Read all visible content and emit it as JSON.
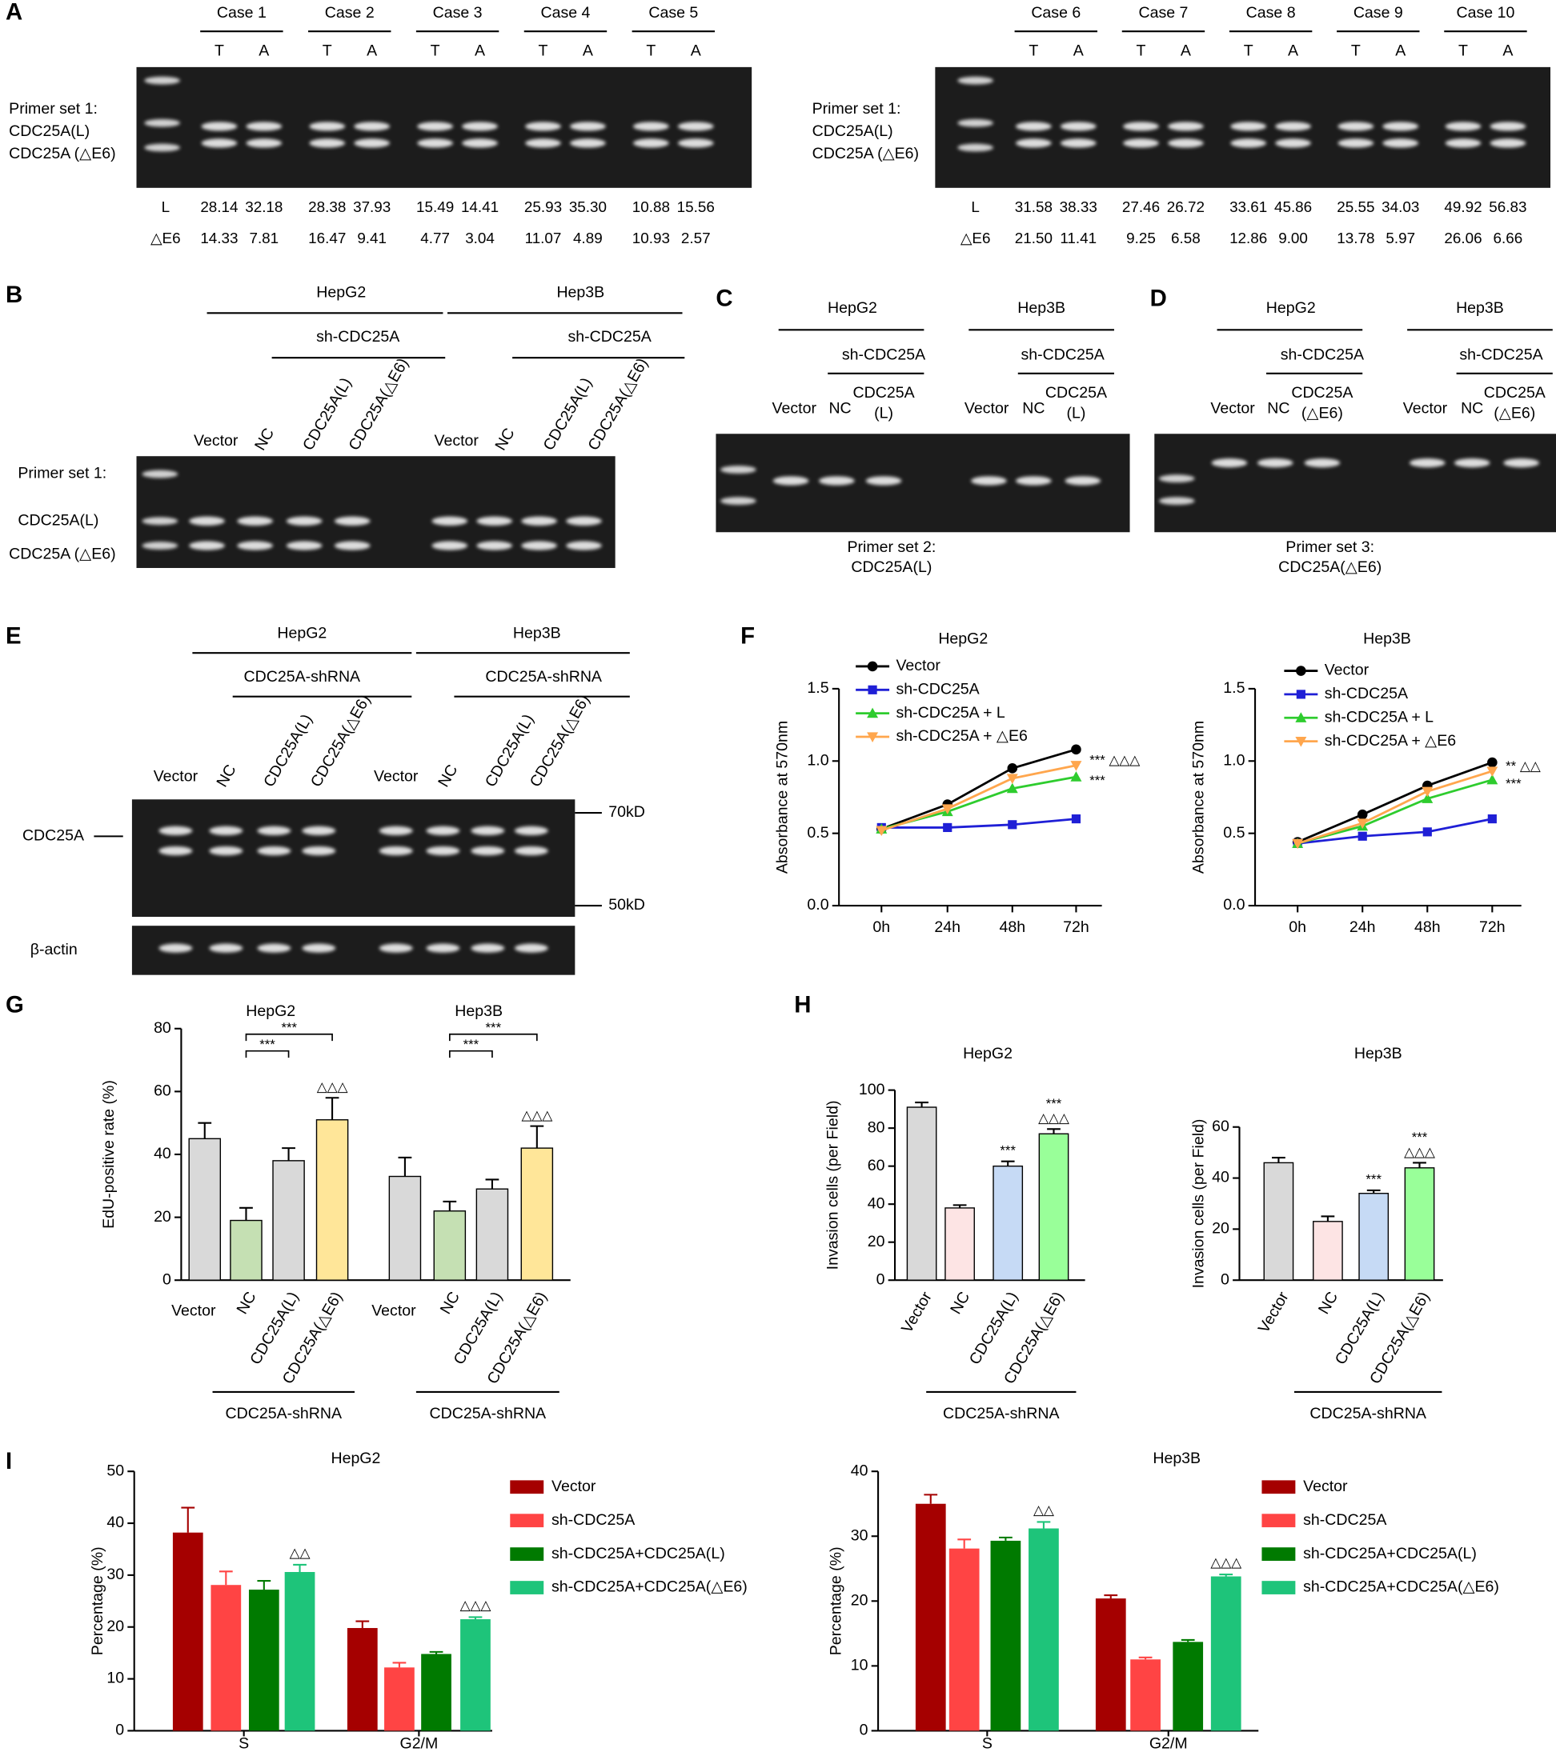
{
  "panel_labels": [
    "A",
    "B",
    "C",
    "D",
    "E",
    "F",
    "G",
    "H",
    "I"
  ],
  "panel_a": [
    {
      "cases": [
        "Case 1",
        "Case 2",
        "Case 3",
        "Case 4",
        "Case 5"
      ],
      "lanes": [
        "T",
        "A"
      ],
      "primer": "Primer set 1:",
      "bands": [
        "CDC25A(L)",
        "CDC25A (△E6)"
      ],
      "rows": [
        {
          "label": "L",
          "values": [
            "28.14",
            "32.18",
            "28.38",
            "37.93",
            "15.49",
            "14.41",
            "25.93",
            "35.30",
            "10.88",
            "15.56"
          ]
        },
        {
          "label": "△E6",
          "values": [
            "14.33",
            "7.81",
            "16.47",
            "9.41",
            "4.77",
            "3.04",
            "11.07",
            "4.89",
            "10.93",
            "2.57"
          ]
        }
      ]
    },
    {
      "cases": [
        "Case 6",
        "Case 7",
        "Case 8",
        "Case 9",
        "Case 10"
      ],
      "lanes": [
        "T",
        "A"
      ],
      "primer": "Primer set 1:",
      "bands": [
        "CDC25A(L)",
        "CDC25A (△E6)"
      ],
      "rows": [
        {
          "label": "L",
          "values": [
            "31.58",
            "38.33",
            "27.46",
            "26.72",
            "33.61",
            "45.86",
            "25.55",
            "34.03",
            "49.92",
            "56.83"
          ]
        },
        {
          "label": "△E6",
          "values": [
            "21.50",
            "11.41",
            "9.25",
            "6.58",
            "12.86",
            "9.00",
            "13.78",
            "5.97",
            "26.06",
            "6.66"
          ]
        }
      ]
    }
  ],
  "panel_b": {
    "cells": [
      "HepG2",
      "Hep3B"
    ],
    "treatment": "sh-CDC25A",
    "lanes": [
      "Vector",
      "NC",
      "CDC25A(L)",
      "CDC25A(△E6)"
    ],
    "primer": "Primer set 1:",
    "bands": [
      "CDC25A(L)",
      "CDC25A (△E6)"
    ]
  },
  "panel_c": {
    "cells": [
      "HepG2",
      "Hep3B"
    ],
    "treatment": "sh-CDC25A",
    "lanes": [
      "Vector",
      "NC"
    ],
    "construct": [
      "CDC25A",
      "(L)"
    ],
    "caption": [
      "Primer set 2:",
      "CDC25A(L)"
    ]
  },
  "panel_d": {
    "cells": [
      "HepG2",
      "Hep3B"
    ],
    "treatment": "sh-CDC25A",
    "lanes": [
      "Vector",
      "NC"
    ],
    "construct": [
      "CDC25A",
      "(△E6)"
    ],
    "caption": [
      "Primer set 3:",
      "CDC25A(△E6)"
    ]
  },
  "panel_e": {
    "cells": [
      "HepG2",
      "Hep3B"
    ],
    "treatment": "CDC25A-shRNA",
    "lanes": [
      "Vector",
      "NC",
      "CDC25A(L)",
      "CDC25A(△E6)"
    ],
    "proteins": [
      "CDC25A",
      "β-actin"
    ],
    "markers": [
      "70kD",
      "50kD"
    ]
  },
  "chart_data": [
    {
      "type": "line",
      "title": "HepG2",
      "ylabel": "Absorbance at 570nm",
      "categories": [
        "0h",
        "24h",
        "48h",
        "72h"
      ],
      "ylim": [
        0,
        1.5
      ],
      "yticks": [
        {
          "value": 0,
          "label": "0.0"
        },
        0.5,
        {
          "value": 1,
          "label": "1.0"
        },
        1.5
      ],
      "series": [
        {
          "name": "Vector",
          "color": "#000000",
          "marker": "circle",
          "values": [
            0.53,
            0.7,
            0.95,
            1.08
          ]
        },
        {
          "name": "sh-CDC25A",
          "color": "#1f1fd6",
          "marker": "square",
          "values": [
            0.54,
            0.54,
            0.56,
            0.6
          ]
        },
        {
          "name": "sh-CDC25A + L",
          "color": "#2ecc2e",
          "marker": "triangle",
          "values": [
            0.53,
            0.65,
            0.81,
            0.89
          ],
          "end_label": "***"
        },
        {
          "name": "sh-CDC25A + △E6",
          "color": "#ffa64d",
          "marker": "triangle-down",
          "values": [
            0.52,
            0.67,
            0.88,
            0.97
          ],
          "end_label": "*** △△△"
        }
      ]
    },
    {
      "type": "line",
      "title": "Hep3B",
      "ylabel": "Absorbance at 570nm",
      "categories": [
        "0h",
        "24h",
        "48h",
        "72h"
      ],
      "ylim": [
        0,
        1.5
      ],
      "yticks": [
        {
          "value": 0,
          "label": "0.0"
        },
        0.5,
        {
          "value": 1,
          "label": "1.0"
        },
        1.5
      ],
      "series": [
        {
          "name": "Vector",
          "color": "#000000",
          "marker": "circle",
          "values": [
            0.44,
            0.63,
            0.83,
            0.99
          ]
        },
        {
          "name": "sh-CDC25A",
          "color": "#1f1fd6",
          "marker": "square",
          "values": [
            0.43,
            0.48,
            0.51,
            0.6
          ]
        },
        {
          "name": "sh-CDC25A + L",
          "color": "#2ecc2e",
          "marker": "triangle",
          "values": [
            0.43,
            0.55,
            0.74,
            0.87
          ],
          "end_label": "***"
        },
        {
          "name": "sh-CDC25A + △E6",
          "color": "#ffa64d",
          "marker": "triangle-down",
          "values": [
            0.43,
            0.57,
            0.79,
            0.93
          ],
          "end_label": "** △△"
        }
      ]
    },
    {
      "type": "bar",
      "ylabel": "EdU-positive rate (%)",
      "categories": [
        "Vector",
        "NC",
        "CDC25A(L)",
        "CDC25A(△E6)"
      ],
      "colors": [
        "#d9d9d9",
        "#c5e0b3",
        "#d9d9d9",
        "#ffe699"
      ],
      "ylim": [
        0,
        80
      ],
      "yticks": [
        0,
        20,
        40,
        60,
        80
      ],
      "groups": [
        {
          "title": "HepG2",
          "values": [
            45,
            19,
            38,
            51
          ],
          "errors": [
            5,
            4,
            4,
            7
          ],
          "comparisons": [
            "***",
            "***"
          ],
          "annotations": [
            [],
            [],
            [],
            [
              "△△△"
            ]
          ]
        },
        {
          "title": "Hep3B",
          "values": [
            33,
            22,
            29,
            42
          ],
          "errors": [
            6,
            3,
            3,
            7
          ],
          "comparisons": [
            "***",
            "***"
          ],
          "annotations": [
            [],
            [],
            [],
            [
              "△△△"
            ]
          ]
        }
      ],
      "bracket_label": "CDC25A-shRNA"
    },
    {
      "type": "bar",
      "ylabel": "Invasion cells (per Field)",
      "categories": [
        "Vector",
        "NC",
        "CDC25A(L)",
        "CDC25A(△E6)"
      ],
      "colors": [
        "#d9d9d9",
        "#fde4e4",
        "#c6daf5",
        "#99ff99"
      ],
      "ylim": [
        0,
        100
      ],
      "yticks": [
        0,
        20,
        40,
        60,
        80,
        100
      ],
      "groups": [
        {
          "title": "HepG2",
          "values": [
            91,
            38,
            60,
            77
          ],
          "errors": [
            2.5,
            1.5,
            2.5,
            2.5
          ],
          "annotations": [
            [],
            [],
            [
              "***"
            ],
            [
              "***",
              "△△△"
            ]
          ]
        }
      ],
      "bracket_label": "CDC25A-shRNA"
    },
    {
      "type": "bar",
      "ylabel": "Invasion cells (per Field)",
      "categories": [
        "Vector",
        "NC",
        "CDC25A(L)",
        "CDC25A(△E6)"
      ],
      "colors": [
        "#d9d9d9",
        "#fde4e4",
        "#c6daf5",
        "#99ff99"
      ],
      "ylim": [
        0,
        60
      ],
      "yticks": [
        0,
        20,
        40,
        60
      ],
      "groups": [
        {
          "title": "Hep3B",
          "values": [
            46,
            23,
            34,
            44
          ],
          "errors": [
            2,
            2,
            1.2,
            2
          ],
          "annotations": [
            [],
            [],
            [
              "***"
            ],
            [
              "***",
              "△△△"
            ]
          ]
        }
      ],
      "bracket_label": "CDC25A-shRNA"
    },
    {
      "type": "grouped_bar",
      "title": "HepG2",
      "ylabel": "Percentage (%)",
      "categories": [
        "S",
        "G2/M"
      ],
      "ylim": [
        0,
        50
      ],
      "yticks": [
        0,
        10,
        20,
        30,
        40,
        50
      ],
      "series": [
        {
          "name": "Vector",
          "color": "#a50000",
          "values": [
            38.2,
            19.8
          ],
          "errors": [
            4.8,
            1.3
          ]
        },
        {
          "name": "sh-CDC25A",
          "color": "#ff4444",
          "values": [
            28.1,
            12.2
          ],
          "errors": [
            2.6,
            0.9
          ]
        },
        {
          "name": "sh-CDC25A+CDC25A(L)",
          "color": "#007a00",
          "values": [
            27.2,
            14.8
          ],
          "errors": [
            1.7,
            0.4
          ]
        },
        {
          "name": "sh-CDC25A+CDC25A(△E6)",
          "color": "#1ec47a",
          "values": [
            30.6,
            21.5
          ],
          "errors": [
            1.4,
            0.4
          ],
          "annotations": [
            "△△",
            "△△△"
          ]
        }
      ]
    },
    {
      "type": "grouped_bar",
      "title": "Hep3B",
      "ylabel": "Percentage (%)",
      "categories": [
        "S",
        "G2/M"
      ],
      "ylim": [
        0,
        40
      ],
      "yticks": [
        0,
        10,
        20,
        30,
        40
      ],
      "series": [
        {
          "name": "Vector",
          "color": "#a50000",
          "values": [
            35,
            20.4
          ],
          "errors": [
            1.4,
            0.5
          ]
        },
        {
          "name": "sh-CDC25A",
          "color": "#ff4444",
          "values": [
            28.1,
            11
          ],
          "errors": [
            1.4,
            0.3
          ]
        },
        {
          "name": "sh-CDC25A+CDC25A(L)",
          "color": "#007a00",
          "values": [
            29.3,
            13.7
          ],
          "errors": [
            0.5,
            0.3
          ]
        },
        {
          "name": "sh-CDC25A+CDC25A(△E6)",
          "color": "#1ec47a",
          "values": [
            31.2,
            23.8
          ],
          "errors": [
            1,
            0.3
          ],
          "annotations": [
            "△△",
            "△△△"
          ]
        }
      ]
    }
  ]
}
